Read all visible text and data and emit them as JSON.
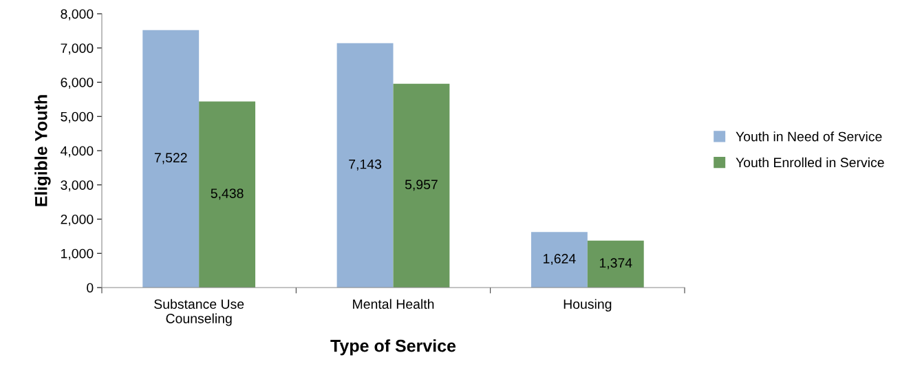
{
  "chart_data": {
    "type": "bar",
    "xlabel": "Type of Service",
    "ylabel": "Eligible Youth",
    "categories": [
      "Substance Use\nCounseling",
      "Mental Health",
      "Housing"
    ],
    "series": [
      {
        "name": "Youth in Need of Service",
        "color": "#95b3d7",
        "values": [
          7522,
          7143,
          1624
        ],
        "value_labels": [
          "7,522",
          "7,143",
          "1,624"
        ]
      },
      {
        "name": "Youth Enrolled in Service",
        "color": "#6a9a5e",
        "values": [
          5438,
          5957,
          1374
        ],
        "value_labels": [
          "5,438",
          "5,957",
          "1,374"
        ]
      }
    ],
    "ylim": [
      0,
      8000
    ],
    "yticks": [
      0,
      {
        "value": 1000,
        "label": "1,000"
      },
      {
        "value": 2000,
        "label": "2,000"
      },
      {
        "value": 3000,
        "label": "3,000"
      },
      {
        "value": 4000,
        "label": "4,000"
      },
      {
        "value": 5000,
        "label": "5,000"
      },
      {
        "value": 6000,
        "label": "6,000"
      },
      {
        "value": 7000,
        "label": "7,000"
      },
      {
        "value": 8000,
        "label": "8,000"
      }
    ],
    "grid": false,
    "legend": "right"
  }
}
